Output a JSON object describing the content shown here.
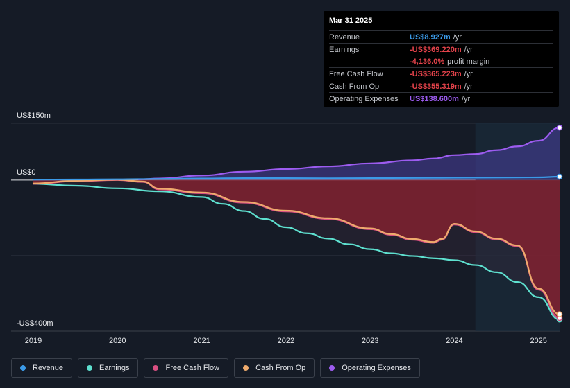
{
  "tooltip": {
    "date": "Mar 31 2025",
    "rows": [
      {
        "label": "Revenue",
        "value": "US$8.927m",
        "unit": "/yr",
        "color": "#3b9ae8"
      },
      {
        "label": "Earnings",
        "value": "-US$369.220m",
        "unit": "/yr",
        "color": "#e5434b"
      },
      {
        "label": "",
        "value": "-4,136.0%",
        "unit": "profit margin",
        "color": "#e5434b"
      },
      {
        "label": "Free Cash Flow",
        "value": "-US$365.223m",
        "unit": "/yr",
        "color": "#e5434b"
      },
      {
        "label": "Cash From Op",
        "value": "-US$355.319m",
        "unit": "/yr",
        "color": "#e5434b"
      },
      {
        "label": "Operating Expenses",
        "value": "US$138.600m",
        "unit": "/yr",
        "color": "#9d5cf0"
      }
    ]
  },
  "legend": [
    {
      "label": "Revenue",
      "color": "#3b9ae8"
    },
    {
      "label": "Earnings",
      "color": "#5ee0cf"
    },
    {
      "label": "Free Cash Flow",
      "color": "#d94f82"
    },
    {
      "label": "Cash From Op",
      "color": "#efab6d"
    },
    {
      "label": "Operating Expenses",
      "color": "#9d5cf0"
    }
  ],
  "chart_data": {
    "type": "area",
    "title": "",
    "xlabel": "",
    "ylabel": "",
    "y_labels": [
      "US$150m",
      "US$0",
      "-US$400m"
    ],
    "ylim": [
      -400,
      150
    ],
    "xlim": [
      2019.0,
      2025.25
    ],
    "x_ticks": [
      2019,
      2020,
      2021,
      2022,
      2023,
      2024,
      2025
    ],
    "x_tick_labels": [
      "2019",
      "2020",
      "2021",
      "2022",
      "2023",
      "2024",
      "2025"
    ],
    "forecast_start": 2024.25,
    "series": [
      {
        "name": "Revenue",
        "color": "#3b9ae8",
        "x": [
          2019.0,
          2019.5,
          2020.0,
          2020.25,
          2020.5,
          2021.0,
          2021.5,
          2022.0,
          2022.5,
          2023.0,
          2023.5,
          2024.0,
          2024.5,
          2025.0,
          2025.25
        ],
        "y": [
          1,
          1.5,
          2,
          2.5,
          3,
          4,
          5,
          5,
          4.5,
          5,
          5.5,
          6,
          6.5,
          7,
          8.9
        ]
      },
      {
        "name": "Earnings",
        "color": "#5ee0cf",
        "x": [
          2019.0,
          2019.5,
          2020.0,
          2020.5,
          2021.0,
          2021.25,
          2021.5,
          2021.75,
          2022.0,
          2022.25,
          2022.5,
          2022.75,
          2023.0,
          2023.25,
          2023.5,
          2023.75,
          2024.0,
          2024.25,
          2024.5,
          2024.75,
          2025.0,
          2025.25
        ],
        "y": [
          -10,
          -15,
          -22,
          -30,
          -45,
          -63,
          -82,
          -103,
          -125,
          -141,
          -155,
          -170,
          -183,
          -194,
          -201,
          -207,
          -212,
          -225,
          -244,
          -270,
          -310,
          -369.2
        ]
      },
      {
        "name": "Free Cash Flow",
        "color": "#d94f82",
        "x": [
          2019.0,
          2019.5,
          2020.0,
          2020.3,
          2020.5,
          2021.0,
          2021.5,
          2022.0,
          2022.5,
          2023.0,
          2023.25,
          2023.5,
          2023.75,
          2023.85,
          2024.0,
          2024.25,
          2024.5,
          2024.75,
          2025.0,
          2025.25
        ],
        "y": [
          -10,
          -3,
          0,
          -5,
          -25,
          -35,
          -60,
          -83,
          -103,
          -130,
          -145,
          -158,
          -166,
          -158,
          -118,
          -138,
          -157,
          -175,
          -290,
          -365.2
        ]
      },
      {
        "name": "Cash From Op",
        "color": "#efab6d",
        "x": [
          2019.0,
          2019.5,
          2020.0,
          2020.3,
          2020.5,
          2021.0,
          2021.5,
          2022.0,
          2022.5,
          2023.0,
          2023.25,
          2023.5,
          2023.75,
          2023.85,
          2024.0,
          2024.25,
          2024.5,
          2024.75,
          2025.0,
          2025.25
        ],
        "y": [
          -9,
          -2,
          1,
          -4,
          -23,
          -33,
          -58,
          -81,
          -101,
          -128,
          -143,
          -156,
          -164,
          -156,
          -116,
          -136,
          -155,
          -173,
          -287,
          -355.3
        ]
      },
      {
        "name": "Operating Expenses",
        "color": "#9d5cf0",
        "x": [
          2020.25,
          2020.5,
          2021.0,
          2021.5,
          2022.0,
          2022.5,
          2023.0,
          2023.5,
          2023.75,
          2024.0,
          2024.25,
          2024.5,
          2024.75,
          2025.0,
          2025.25
        ],
        "y": [
          2,
          4,
          12,
          22,
          29,
          36,
          44,
          52,
          57,
          66,
          69,
          79,
          89,
          104,
          138.6
        ]
      }
    ]
  }
}
